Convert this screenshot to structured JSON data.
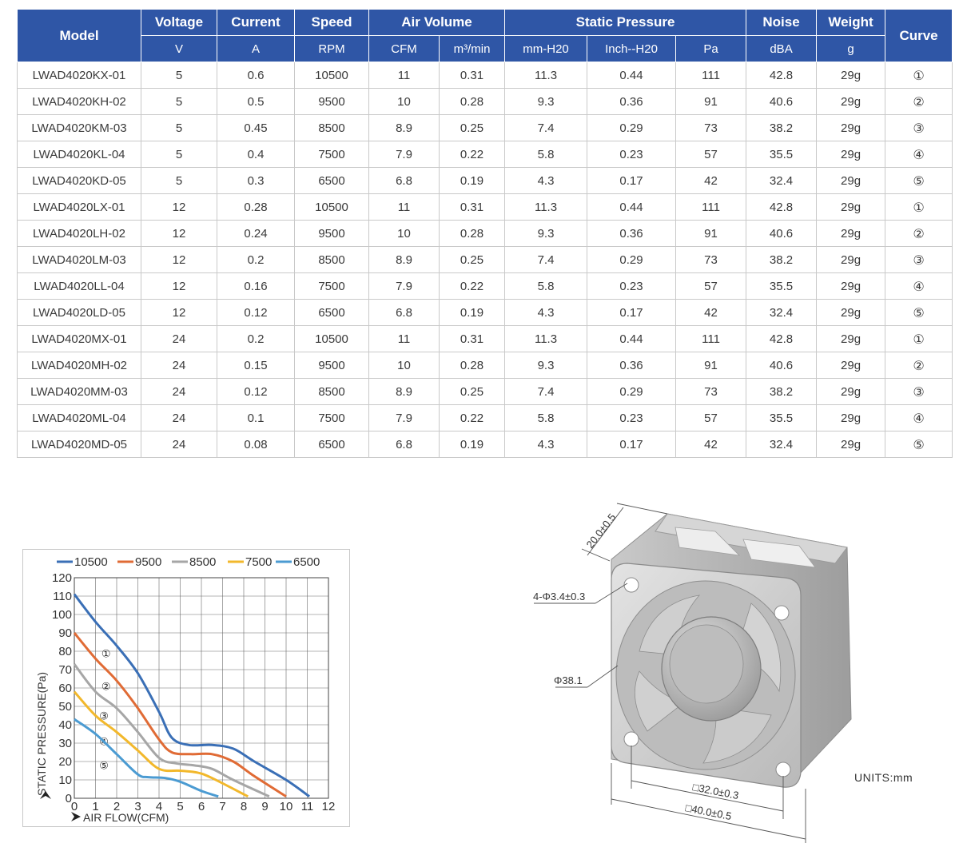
{
  "table": {
    "headers": {
      "model": "Model",
      "voltage": "Voltage",
      "voltage_unit": "V",
      "current": "Current",
      "current_unit": "A",
      "speed": "Speed",
      "speed_unit": "RPM",
      "air_volume": "Air Volume",
      "cfm_unit": "CFM",
      "m3_unit": "m³/min",
      "static_pressure": "Static Pressure",
      "mmh2o_unit": "mm-H20",
      "inh2o_unit": "Inch--H20",
      "pa_unit": "Pa",
      "noise": "Noise",
      "noise_unit": "dBA",
      "weight": "Weight",
      "weight_unit": "g",
      "curve": "Curve"
    },
    "rows": [
      [
        "LWAD4020KX-01",
        "5",
        "0.6",
        "10500",
        "11",
        "0.31",
        "11.3",
        "0.44",
        "111",
        "42.8",
        "29g",
        "①"
      ],
      [
        "LWAD4020KH-02",
        "5",
        "0.5",
        "9500",
        "10",
        "0.28",
        "9.3",
        "0.36",
        "91",
        "40.6",
        "29g",
        "②"
      ],
      [
        "LWAD4020KM-03",
        "5",
        "0.45",
        "8500",
        "8.9",
        "0.25",
        "7.4",
        "0.29",
        "73",
        "38.2",
        "29g",
        "③"
      ],
      [
        "LWAD4020KL-04",
        "5",
        "0.4",
        "7500",
        "7.9",
        "0.22",
        "5.8",
        "0.23",
        "57",
        "35.5",
        "29g",
        "④"
      ],
      [
        "LWAD4020KD-05",
        "5",
        "0.3",
        "6500",
        "6.8",
        "0.19",
        "4.3",
        "0.17",
        "42",
        "32.4",
        "29g",
        "⑤"
      ],
      [
        "LWAD4020LX-01",
        "12",
        "0.28",
        "10500",
        "11",
        "0.31",
        "11.3",
        "0.44",
        "111",
        "42.8",
        "29g",
        "①"
      ],
      [
        "LWAD4020LH-02",
        "12",
        "0.24",
        "9500",
        "10",
        "0.28",
        "9.3",
        "0.36",
        "91",
        "40.6",
        "29g",
        "②"
      ],
      [
        "LWAD4020LM-03",
        "12",
        "0.2",
        "8500",
        "8.9",
        "0.25",
        "7.4",
        "0.29",
        "73",
        "38.2",
        "29g",
        "③"
      ],
      [
        "LWAD4020LL-04",
        "12",
        "0.16",
        "7500",
        "7.9",
        "0.22",
        "5.8",
        "0.23",
        "57",
        "35.5",
        "29g",
        "④"
      ],
      [
        "LWAD4020LD-05",
        "12",
        "0.12",
        "6500",
        "6.8",
        "0.19",
        "4.3",
        "0.17",
        "42",
        "32.4",
        "29g",
        "⑤"
      ],
      [
        "LWAD4020MX-01",
        "24",
        "0.2",
        "10500",
        "11",
        "0.31",
        "11.3",
        "0.44",
        "111",
        "42.8",
        "29g",
        "①"
      ],
      [
        "LWAD4020MH-02",
        "24",
        "0.15",
        "9500",
        "10",
        "0.28",
        "9.3",
        "0.36",
        "91",
        "40.6",
        "29g",
        "②"
      ],
      [
        "LWAD4020MM-03",
        "24",
        "0.12",
        "8500",
        "8.9",
        "0.25",
        "7.4",
        "0.29",
        "73",
        "38.2",
        "29g",
        "③"
      ],
      [
        "LWAD4020ML-04",
        "24",
        "0.1",
        "7500",
        "7.9",
        "0.22",
        "5.8",
        "0.23",
        "57",
        "35.5",
        "29g",
        "④"
      ],
      [
        "LWAD4020MD-05",
        "24",
        "0.08",
        "6500",
        "6.8",
        "0.19",
        "4.3",
        "0.17",
        "42",
        "32.4",
        "29g",
        "⑤"
      ]
    ]
  },
  "chart_data": {
    "type": "line",
    "xlabel": "AIR FLOW(CFM)",
    "ylabel": "STATIC PRESSURE(Pa)",
    "xlim": [
      0,
      12
    ],
    "ylim": [
      0,
      120
    ],
    "x_ticks": [
      "0",
      "1",
      "2",
      "3",
      "4",
      "5",
      "6",
      "7",
      "8",
      "9",
      "10",
      "11",
      "12"
    ],
    "y_ticks": [
      "0",
      "10",
      "20",
      "30",
      "40",
      "50",
      "60",
      "70",
      "80",
      "90",
      "100",
      "110",
      "120"
    ],
    "grid": true,
    "legend_position": "top",
    "series": [
      {
        "name": "10500",
        "color": "#3a6fb6",
        "marker": "①",
        "marker_at": [
          1.5,
          79
        ],
        "points": [
          [
            0,
            111
          ],
          [
            1,
            96
          ],
          [
            2,
            83
          ],
          [
            3,
            68
          ],
          [
            4,
            47
          ],
          [
            4.6,
            33
          ],
          [
            5.4,
            29
          ],
          [
            6.5,
            29
          ],
          [
            7.5,
            27
          ],
          [
            8.5,
            20
          ],
          [
            10,
            10
          ],
          [
            11.1,
            1
          ]
        ]
      },
      {
        "name": "9500",
        "color": "#e06b35",
        "marker": "②",
        "marker_at": [
          1.5,
          61
        ],
        "points": [
          [
            0,
            90
          ],
          [
            1,
            76
          ],
          [
            2,
            64
          ],
          [
            3,
            49
          ],
          [
            4,
            32
          ],
          [
            4.6,
            25
          ],
          [
            5.5,
            24
          ],
          [
            6.5,
            24
          ],
          [
            7.5,
            20
          ],
          [
            8.5,
            12
          ],
          [
            10.0,
            1
          ]
        ]
      },
      {
        "name": "8500",
        "color": "#a6a6a6",
        "marker": "③",
        "marker_at": [
          1.4,
          45
        ],
        "points": [
          [
            0,
            73
          ],
          [
            1,
            58
          ],
          [
            2,
            49
          ],
          [
            3,
            36
          ],
          [
            4,
            22
          ],
          [
            4.8,
            19
          ],
          [
            5.6,
            18
          ],
          [
            6.5,
            16
          ],
          [
            7.5,
            10
          ],
          [
            9.2,
            1
          ]
        ]
      },
      {
        "name": "7500",
        "color": "#f2b82c",
        "marker": "④",
        "marker_at": [
          1.4,
          31
        ],
        "points": [
          [
            0,
            58
          ],
          [
            1,
            45
          ],
          [
            2,
            36
          ],
          [
            3,
            26
          ],
          [
            4,
            16
          ],
          [
            5,
            15
          ],
          [
            5.8,
            14
          ],
          [
            6.5,
            11
          ],
          [
            8.2,
            1
          ]
        ]
      },
      {
        "name": "6500",
        "color": "#4b9bd2",
        "marker": "⑤",
        "marker_at": [
          1.4,
          18
        ],
        "points": [
          [
            0,
            43
          ],
          [
            1,
            35
          ],
          [
            2,
            24
          ],
          [
            3,
            13
          ],
          [
            3.5,
            11.5
          ],
          [
            4.3,
            11
          ],
          [
            5.0,
            9
          ],
          [
            6.0,
            4
          ],
          [
            6.8,
            1
          ]
        ]
      }
    ]
  },
  "drawing": {
    "dim_depth": "20.0±0.5",
    "dim_holes": "4-Φ3.4±0.3",
    "dim_diameter": "Φ38.1",
    "dim_hole_spacing": "□32.0±0.3",
    "dim_outer": "□40.0±0.5",
    "units": "UNITS:mm"
  }
}
